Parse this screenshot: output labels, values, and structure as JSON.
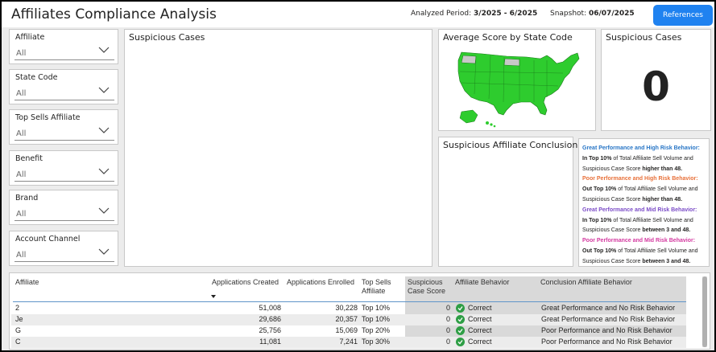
{
  "header": {
    "title": "Affiliates Compliance Analysis",
    "period_label": "Analyzed Period:",
    "period_value": "3/2025 - 6/2025",
    "snapshot_label": "Snapshot:",
    "snapshot_value": "06/07/2025",
    "references_button": "References"
  },
  "slicers": [
    {
      "label": "Affiliate",
      "value": "All"
    },
    {
      "label": "State Code",
      "value": "All"
    },
    {
      "label": "Top Sells Affiliate",
      "value": "All"
    },
    {
      "label": "Benefit",
      "value": "All"
    },
    {
      "label": "Brand",
      "value": "All"
    },
    {
      "label": "Account Channel",
      "value": "All"
    }
  ],
  "panels": {
    "suspicious_cases_chart_title": "Suspicious Cases",
    "map_title": "Average Score by State Code",
    "card_title": "Suspicious Cases",
    "card_value": "0",
    "conclusion_title": "Suspicious Affiliate Conclusion"
  },
  "legend": [
    {
      "heading": "Great Performance and High Risk Behavior:",
      "color": "#2775c6",
      "l1a": "In Top 10%",
      "l1b": " of Total Affiliate Sell Volume and",
      "l2a": "Suspicious Case Score ",
      "l2b": "higher than 48."
    },
    {
      "heading": "Poor Performance and High Risk Behavior:",
      "color": "#e8713a",
      "l1a": "Out Top 10%",
      "l1b": " of Total Affiliate Sell Volume and",
      "l2a": "Suspicious Case Score  ",
      "l2b": "higher than 48."
    },
    {
      "heading": "Great Performance and Mid Risk Behavior:",
      "color": "#7b4cc7",
      "l1a": "In Top 10%",
      "l1b": " of Total Affiliate Sell Volume and",
      "l2a": "Suspicious Case Score ",
      "l2b": "between 3 and 48."
    },
    {
      "heading": "Poor Performance and Mid Risk Behavior:",
      "color": "#d43aa0",
      "l1a": "Out Top 10%",
      "l1b": " of Total Affiliate Sell Volume and",
      "l2a": "Suspicious Case Score ",
      "l2b": "between 3 and 48."
    }
  ],
  "table": {
    "columns": {
      "affiliate": "Affiliate",
      "apps_created": "Applications Created",
      "apps_enrolled": "Applications Enrolled",
      "top_sells_1": "Top Sells",
      "top_sells_2": "Affiliate",
      "susp_1": "Suspicious",
      "susp_2": "Case Score",
      "behavior": "Affiliate Behavior",
      "conclusion": "Conclusion Affiliate Behavior"
    },
    "rows": [
      {
        "affiliate": "2",
        "created": "51,008",
        "enrolled": "30,228",
        "top": "Top 10%",
        "score": "0",
        "behavior": "Correct",
        "conclusion": "Great Performance and No Risk Behavior"
      },
      {
        "affiliate": "Je",
        "created": "29,686",
        "enrolled": "20,357",
        "top": "Top 10%",
        "score": "0",
        "behavior": "Correct",
        "conclusion": "Great Performance and No Risk Behavior"
      },
      {
        "affiliate": "G",
        "created": "25,756",
        "enrolled": "15,069",
        "top": "Top 20%",
        "score": "0",
        "behavior": "Correct",
        "conclusion": "Poor Performance and No Risk Behavior"
      },
      {
        "affiliate": "C",
        "created": "11,081",
        "enrolled": "7,241",
        "top": "Top 30%",
        "score": "0",
        "behavior": "Correct",
        "conclusion": "Poor Performance and No Risk Behavior"
      }
    ]
  },
  "colors": {
    "accent": "#1f82f0",
    "map_fill": "#2ecc2e",
    "map_nodata": "#c8c8c8",
    "correct": "#2e9e45"
  },
  "icons": [
    "chevron-down-icon",
    "check-circle-icon",
    "sort-desc-icon"
  ]
}
